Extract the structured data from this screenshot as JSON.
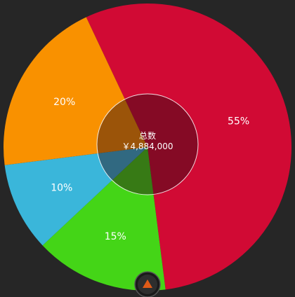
{
  "chart_data": {
    "type": "pie",
    "slices": [
      {
        "label": "55%",
        "value": 55,
        "color": "#d10a34"
      },
      {
        "label": "15%",
        "value": 15,
        "color": "#44d517"
      },
      {
        "label": "10%",
        "value": 10,
        "color": "#3ab6da"
      },
      {
        "label": "20%",
        "value": 20,
        "color": "#f99100"
      }
    ],
    "center": {
      "title": "总数",
      "value": "￥4,884,000"
    }
  },
  "controls": {
    "rotate_button_icon": "triangle-up-icon",
    "accent_color": "#e05a17"
  }
}
